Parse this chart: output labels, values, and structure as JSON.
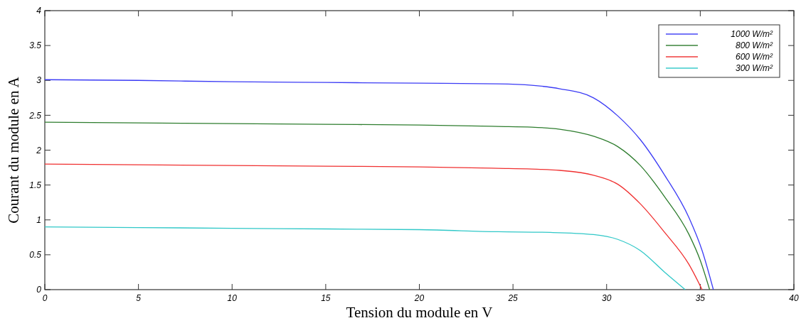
{
  "chart_data": {
    "type": "line",
    "xlabel": "Tension du module en V",
    "ylabel": "Courant du module en A",
    "xlim": [
      0,
      40
    ],
    "ylim": [
      0,
      4
    ],
    "xticks": [
      0,
      5,
      10,
      15,
      20,
      25,
      30,
      35,
      40
    ],
    "yticks": [
      0,
      0.5,
      1,
      1.5,
      2,
      2.5,
      3,
      3.5,
      4
    ],
    "grid": false,
    "legend": "top right",
    "line_style": "solid",
    "marker": "none",
    "series": [
      {
        "name": "1000 W/m²",
        "color": "#3b3bf5",
        "x": [
          0,
          5,
          10,
          15,
          20,
          24.2,
          26,
          27.5,
          29.3,
          30.6,
          31.8,
          33.1,
          34.4,
          35.1,
          35.7
        ],
        "values": [
          3.01,
          3.0,
          2.98,
          2.97,
          2.96,
          2.95,
          2.93,
          2.88,
          2.75,
          2.49,
          2.15,
          1.64,
          1.03,
          0.56,
          0
        ]
      },
      {
        "name": "800 W/m²",
        "color": "#2e7d2e",
        "x": [
          0,
          5,
          10,
          15,
          20,
          24.2,
          26,
          27.5,
          29.3,
          30.6,
          31.8,
          33.1,
          34.4,
          35.0,
          35.5
        ],
        "values": [
          2.4,
          2.39,
          2.38,
          2.37,
          2.36,
          2.34,
          2.33,
          2.3,
          2.2,
          2.05,
          1.78,
          1.33,
          0.79,
          0.42,
          0
        ]
      },
      {
        "name": "600 W/m²",
        "color": "#f03030",
        "x": [
          0,
          5,
          10,
          15,
          20,
          24.2,
          26,
          27.5,
          29.3,
          30.6,
          31.8,
          33.1,
          34.4,
          35.1
        ],
        "values": [
          1.8,
          1.79,
          1.78,
          1.77,
          1.76,
          1.74,
          1.73,
          1.71,
          1.64,
          1.51,
          1.23,
          0.82,
          0.36,
          0
        ]
      },
      {
        "name": "300 W/m²",
        "color": "#30c8c8",
        "x": [
          0,
          5,
          10,
          15,
          20,
          24.2,
          27,
          29.3,
          30.6,
          31.8,
          33.1,
          34.2
        ],
        "values": [
          0.9,
          0.89,
          0.88,
          0.87,
          0.86,
          0.83,
          0.82,
          0.79,
          0.72,
          0.56,
          0.25,
          0
        ]
      }
    ]
  }
}
